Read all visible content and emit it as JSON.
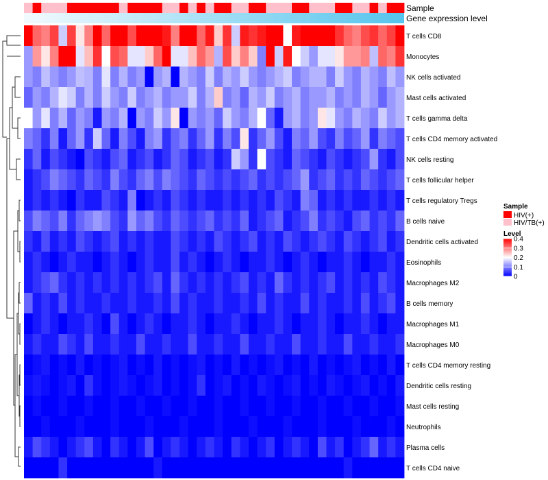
{
  "chart_data": {
    "type": "heatmap",
    "annotation_rows": [
      "Sample",
      "Gene expression level"
    ],
    "rows": [
      "T cells CD8",
      "Monocytes",
      "NK cells activated",
      "Mast cells activated",
      "T cells gamma delta",
      "T cells CD4 memory activated",
      "NK cells resting",
      "T cells follicular helper",
      "T cells regulatory  Tregs",
      "B cells naive",
      "Dendritic cells activated",
      "Eosinophils",
      "Macrophages M2",
      "B cells memory",
      "Macrophages M1",
      "Macrophages M0",
      "T cells CD4 memory resting",
      "Dendritic cells resting",
      "Mast cells resting",
      "Neutrophils",
      "Plasma cells",
      "T cells CD4 naive"
    ],
    "n_columns": 44,
    "sample_groups": [
      "HIV(+)",
      "HIV/TB(+)"
    ],
    "sample_annotation": [
      1,
      0,
      1,
      1,
      1,
      0,
      0,
      0,
      0,
      0,
      0,
      1,
      0,
      0,
      0,
      0,
      1,
      1,
      0,
      1,
      0,
      1,
      0,
      0,
      1,
      1,
      0,
      0,
      1,
      1,
      1,
      0,
      0,
      1,
      1,
      1,
      0,
      0,
      1,
      1,
      0,
      1,
      0,
      0
    ],
    "sample_colors": {
      "HIV(+)": "#ff0000",
      "HIV/TB(+)": "#ffc0cb"
    },
    "expression_gradient": {
      "low": "#f2fafe",
      "high": "#55c4ec"
    },
    "values": [
      [
        0.42,
        0.32,
        0.3,
        0.35,
        0.16,
        0.35,
        0.22,
        0.3,
        0.4,
        0.32,
        0.46,
        0.4,
        0.34,
        0.46,
        0.46,
        0.44,
        0.38,
        0.3,
        0.4,
        0.44,
        0.32,
        0.38,
        0.24,
        0.36,
        0.16,
        0.38,
        0.36,
        0.38,
        0.44,
        0.46,
        0.2,
        0.38,
        0.44,
        0.46,
        0.46,
        0.46,
        0.36,
        0.32,
        0.3,
        0.34,
        0.36,
        0.32,
        0.35,
        0.42
      ],
      [
        0.12,
        0.28,
        0.22,
        0.3,
        0.45,
        0.46,
        0.18,
        0.25,
        0.36,
        0.2,
        0.34,
        0.32,
        0.18,
        0.18,
        0.24,
        0.32,
        0.4,
        0.18,
        0.18,
        0.25,
        0.32,
        0.28,
        0.14,
        0.34,
        0.24,
        0.3,
        0.24,
        0.1,
        0.44,
        0.16,
        0.38,
        0.2,
        0.16,
        0.12,
        0.18,
        0.18,
        0.22,
        0.28,
        0.28,
        0.3,
        0.15,
        0.32,
        0.3,
        0.36
      ],
      [
        0.12,
        0.1,
        0.15,
        0.12,
        0.1,
        0.12,
        0.15,
        0.14,
        0.1,
        0.18,
        0.1,
        0.14,
        0.1,
        0.12,
        0.0,
        0.12,
        0.14,
        0.0,
        0.14,
        0.12,
        0.1,
        0.16,
        0.1,
        0.14,
        0.12,
        0.16,
        0.12,
        0.1,
        0.12,
        0.14,
        0.16,
        0.1,
        0.12,
        0.14,
        0.14,
        0.1,
        0.16,
        0.12,
        0.1,
        0.14,
        0.12,
        0.1,
        0.15,
        0.12
      ],
      [
        0.08,
        0.12,
        0.1,
        0.14,
        0.18,
        0.16,
        0.1,
        0.14,
        0.1,
        0.16,
        0.12,
        0.1,
        0.16,
        0.1,
        0.12,
        0.14,
        0.1,
        0.12,
        0.12,
        0.16,
        0.1,
        0.14,
        0.24,
        0.1,
        0.12,
        0.08,
        0.14,
        0.12,
        0.16,
        0.1,
        0.12,
        0.14,
        0.1,
        0.12,
        0.12,
        0.14,
        0.1,
        0.12,
        0.1,
        0.14,
        0.12,
        0.08,
        0.12,
        0.14
      ],
      [
        0.2,
        0.12,
        0.18,
        0.1,
        0.14,
        0.08,
        0.12,
        0.1,
        0.02,
        0.12,
        0.1,
        0.14,
        0.0,
        0.12,
        0.1,
        0.16,
        0.12,
        0.22,
        0.0,
        0.12,
        0.1,
        0.12,
        0.08,
        0.16,
        0.12,
        0.1,
        0.14,
        0.2,
        0.08,
        0.02,
        0.12,
        0.14,
        0.1,
        0.12,
        0.22,
        0.18,
        0.12,
        0.1,
        0.14,
        0.12,
        0.1,
        0.16,
        0.12,
        0.14
      ],
      [
        0.1,
        0.08,
        0.04,
        0.1,
        0.02,
        0.08,
        0.12,
        0.04,
        0.16,
        0.08,
        0.02,
        0.1,
        0.06,
        0.02,
        0.1,
        0.12,
        0.04,
        0.08,
        0.1,
        0.04,
        0.08,
        0.12,
        0.04,
        0.1,
        0.06,
        0.22,
        0.04,
        0.08,
        0.12,
        0.06,
        0.02,
        0.1,
        0.08,
        0.12,
        0.06,
        0.04,
        0.1,
        0.06,
        0.08,
        0.12,
        0.04,
        0.1,
        0.08,
        0.06
      ],
      [
        0.04,
        0.08,
        0.02,
        0.06,
        0.04,
        0.02,
        0.0,
        0.06,
        0.04,
        0.02,
        0.06,
        0.08,
        0.02,
        0.04,
        0.06,
        0.02,
        0.04,
        0.08,
        0.06,
        0.02,
        0.04,
        0.06,
        0.02,
        0.04,
        0.16,
        0.12,
        0.04,
        0.2,
        0.06,
        0.04,
        0.02,
        0.08,
        0.06,
        0.04,
        0.02,
        0.06,
        0.04,
        0.02,
        0.04,
        0.06,
        0.12,
        0.04,
        0.02,
        0.06
      ],
      [
        0.02,
        0.04,
        0.06,
        0.1,
        0.08,
        0.06,
        0.04,
        0.08,
        0.06,
        0.04,
        0.1,
        0.06,
        0.04,
        0.08,
        0.1,
        0.06,
        0.1,
        0.08,
        0.06,
        0.04,
        0.08,
        0.06,
        0.04,
        0.06,
        0.04,
        0.06,
        0.08,
        0.04,
        0.06,
        0.04,
        0.06,
        0.08,
        0.12,
        0.04,
        0.06,
        0.08,
        0.04,
        0.06,
        0.04,
        0.08,
        0.06,
        0.04,
        0.06,
        0.08
      ],
      [
        0.02,
        0.04,
        0.02,
        0.04,
        0.02,
        0.0,
        0.04,
        0.02,
        0.02,
        0.06,
        0.04,
        0.02,
        0.1,
        0.0,
        0.02,
        0.04,
        0.02,
        0.06,
        0.04,
        0.02,
        0.04,
        0.02,
        0.02,
        0.04,
        0.02,
        0.04,
        0.02,
        0.04,
        0.02,
        0.06,
        0.04,
        0.02,
        0.1,
        0.08,
        0.02,
        0.04,
        0.02,
        0.04,
        0.02,
        0.02,
        0.04,
        0.02,
        0.04,
        0.02
      ],
      [
        0.06,
        0.1,
        0.08,
        0.06,
        0.1,
        0.04,
        0.08,
        0.1,
        0.12,
        0.1,
        0.06,
        0.04,
        0.12,
        0.08,
        0.1,
        0.06,
        0.04,
        0.08,
        0.06,
        0.04,
        0.06,
        0.08,
        0.04,
        0.06,
        0.04,
        0.08,
        0.02,
        0.04,
        0.06,
        0.08,
        0.02,
        0.04,
        0.06,
        0.1,
        0.04,
        0.06,
        0.04,
        0.02,
        0.06,
        0.08,
        0.04,
        0.06,
        0.04,
        0.08
      ],
      [
        0.04,
        0.02,
        0.06,
        0.02,
        0.04,
        0.02,
        0.06,
        0.04,
        0.02,
        0.04,
        0.06,
        0.02,
        0.04,
        0.02,
        0.04,
        0.02,
        0.02,
        0.06,
        0.04,
        0.02,
        0.04,
        0.02,
        0.06,
        0.04,
        0.02,
        0.04,
        0.06,
        0.02,
        0.04,
        0.02,
        0.06,
        0.04,
        0.02,
        0.04,
        0.06,
        0.04,
        0.02,
        0.06,
        0.04,
        0.02,
        0.04,
        0.06,
        0.02,
        0.04
      ],
      [
        0.02,
        0.04,
        0.02,
        0.0,
        0.02,
        0.04,
        0.02,
        0.02,
        0.0,
        0.02,
        0.04,
        0.02,
        0.0,
        0.02,
        0.04,
        0.02,
        0.02,
        0.06,
        0.02,
        0.04,
        0.02,
        0.0,
        0.02,
        0.04,
        0.02,
        0.0,
        0.02,
        0.02,
        0.04,
        0.02,
        0.0,
        0.02,
        0.04,
        0.02,
        0.0,
        0.02,
        0.02,
        0.04,
        0.02,
        0.0,
        0.02,
        0.02,
        0.04,
        0.02
      ],
      [
        0.02,
        0.04,
        0.06,
        0.08,
        0.04,
        0.02,
        0.04,
        0.02,
        0.04,
        0.02,
        0.04,
        0.02,
        0.04,
        0.02,
        0.04,
        0.06,
        0.02,
        0.08,
        0.04,
        0.02,
        0.04,
        0.02,
        0.04,
        0.02,
        0.04,
        0.06,
        0.02,
        0.04,
        0.02,
        0.08,
        0.04,
        0.02,
        0.04,
        0.02,
        0.04,
        0.06,
        0.02,
        0.04,
        0.02,
        0.04,
        0.02,
        0.06,
        0.04,
        0.02
      ],
      [
        0.08,
        0.02,
        0.04,
        0.02,
        0.06,
        0.02,
        0.04,
        0.02,
        0.02,
        0.04,
        0.02,
        0.02,
        0.04,
        0.02,
        0.02,
        0.04,
        0.02,
        0.06,
        0.02,
        0.04,
        0.02,
        0.02,
        0.04,
        0.02,
        0.02,
        0.04,
        0.02,
        0.06,
        0.02,
        0.04,
        0.02,
        0.02,
        0.06,
        0.02,
        0.04,
        0.02,
        0.02,
        0.04,
        0.02,
        0.06,
        0.02,
        0.04,
        0.06,
        0.02
      ],
      [
        0.0,
        0.02,
        0.04,
        0.02,
        0.0,
        0.02,
        0.02,
        0.04,
        0.02,
        0.0,
        0.06,
        0.02,
        0.0,
        0.02,
        0.04,
        0.02,
        0.0,
        0.02,
        0.02,
        0.04,
        0.02,
        0.0,
        0.02,
        0.02,
        0.04,
        0.02,
        0.0,
        0.02,
        0.02,
        0.04,
        0.02,
        0.0,
        0.02,
        0.02,
        0.04,
        0.02,
        0.0,
        0.02,
        0.02,
        0.04,
        0.02,
        0.0,
        0.02,
        0.02
      ],
      [
        0.02,
        0.04,
        0.02,
        0.02,
        0.06,
        0.04,
        0.02,
        0.06,
        0.02,
        0.02,
        0.04,
        0.02,
        0.02,
        0.06,
        0.02,
        0.02,
        0.04,
        0.02,
        0.02,
        0.06,
        0.02,
        0.02,
        0.04,
        0.02,
        0.02,
        0.06,
        0.02,
        0.02,
        0.04,
        0.02,
        0.02,
        0.06,
        0.02,
        0.02,
        0.04,
        0.02,
        0.02,
        0.06,
        0.02,
        0.02,
        0.04,
        0.02,
        0.02,
        0.04
      ],
      [
        0.0,
        0.01,
        0.02,
        0.0,
        0.01,
        0.0,
        0.02,
        0.0,
        0.01,
        0.0,
        0.01,
        0.02,
        0.0,
        0.01,
        0.0,
        0.02,
        0.0,
        0.01,
        0.0,
        0.01,
        0.02,
        0.0,
        0.01,
        0.0,
        0.02,
        0.0,
        0.01,
        0.0,
        0.01,
        0.02,
        0.0,
        0.01,
        0.0,
        0.02,
        0.0,
        0.01,
        0.0,
        0.01,
        0.02,
        0.0,
        0.01,
        0.0,
        0.02,
        0.0
      ],
      [
        0.01,
        0.02,
        0.01,
        0.0,
        0.01,
        0.02,
        0.0,
        0.04,
        0.01,
        0.0,
        0.01,
        0.02,
        0.01,
        0.0,
        0.01,
        0.02,
        0.0,
        0.01,
        0.0,
        0.01,
        0.04,
        0.0,
        0.01,
        0.02,
        0.0,
        0.01,
        0.0,
        0.02,
        0.01,
        0.0,
        0.01,
        0.02,
        0.0,
        0.01,
        0.0,
        0.02,
        0.01,
        0.0,
        0.01,
        0.02,
        0.0,
        0.01,
        0.0,
        0.02
      ],
      [
        0.0,
        0.01,
        0.0,
        0.0,
        0.01,
        0.0,
        0.0,
        0.01,
        0.0,
        0.0,
        0.01,
        0.0,
        0.0,
        0.01,
        0.0,
        0.0,
        0.01,
        0.0,
        0.0,
        0.01,
        0.0,
        0.0,
        0.01,
        0.0,
        0.0,
        0.01,
        0.0,
        0.0,
        0.01,
        0.0,
        0.0,
        0.01,
        0.0,
        0.0,
        0.01,
        0.0,
        0.0,
        0.01,
        0.0,
        0.0,
        0.01,
        0.0,
        0.0,
        0.01
      ],
      [
        0.0,
        0.0,
        0.01,
        0.0,
        0.0,
        0.0,
        0.01,
        0.0,
        0.0,
        0.0,
        0.01,
        0.0,
        0.0,
        0.0,
        0.01,
        0.0,
        0.0,
        0.0,
        0.01,
        0.0,
        0.0,
        0.0,
        0.01,
        0.0,
        0.0,
        0.0,
        0.01,
        0.0,
        0.0,
        0.0,
        0.01,
        0.0,
        0.0,
        0.0,
        0.01,
        0.0,
        0.0,
        0.0,
        0.01,
        0.0,
        0.0,
        0.0,
        0.01,
        0.0
      ],
      [
        0.02,
        0.06,
        0.04,
        0.02,
        0.0,
        0.02,
        0.04,
        0.06,
        0.02,
        0.0,
        0.04,
        0.02,
        0.0,
        0.02,
        0.06,
        0.0,
        0.02,
        0.04,
        0.02,
        0.0,
        0.02,
        0.04,
        0.02,
        0.0,
        0.04,
        0.02,
        0.0,
        0.02,
        0.04,
        0.0,
        0.02,
        0.04,
        0.02,
        0.0,
        0.06,
        0.02,
        0.04,
        0.0,
        0.02,
        0.04,
        0.08,
        0.02,
        0.04,
        0.02
      ],
      [
        0.0,
        0.0,
        0.0,
        0.0,
        0.04,
        0.0,
        0.0,
        0.0,
        0.0,
        0.0,
        0.0,
        0.0,
        0.0,
        0.0,
        0.0,
        0.02,
        0.0,
        0.0,
        0.0,
        0.0,
        0.0,
        0.0,
        0.0,
        0.0,
        0.0,
        0.0,
        0.0,
        0.0,
        0.0,
        0.0,
        0.0,
        0.0,
        0.0,
        0.0,
        0.0,
        0.0,
        0.0,
        0.02,
        0.0,
        0.0,
        0.0,
        0.0,
        0.0,
        0.0
      ]
    ],
    "legend": {
      "sample_title": "Sample",
      "level_title": "Level",
      "level_ticks": [
        0.4,
        0.3,
        0.2,
        0.1,
        0
      ],
      "level_range": [
        0,
        0.4
      ],
      "color_low": "#0000ff",
      "color_mid": "#ffffff",
      "color_high": "#ff0000"
    },
    "dendrogram": "rows-clustered"
  }
}
